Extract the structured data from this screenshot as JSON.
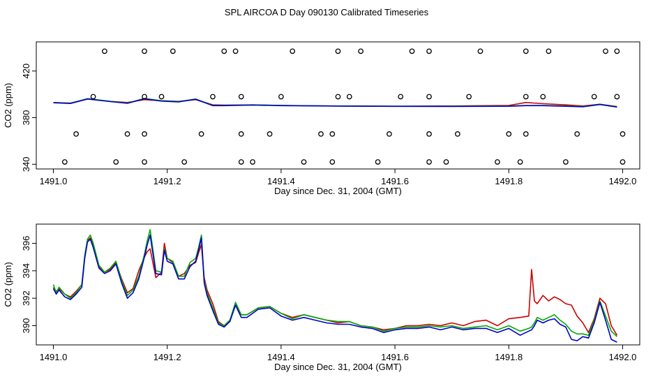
{
  "page": {
    "title": "SPL AIRCOA D  Day 090130  Calibrated Timeseries"
  },
  "chart_data": [
    {
      "type": "line",
      "xlabel": "Day since Dec. 31, 2004 (GMT)",
      "ylabel": "CO2 (ppm)",
      "xlim": [
        1490.97,
        1492.03
      ],
      "ylim": [
        336,
        445
      ],
      "xticks": [
        1491.0,
        1491.2,
        1491.4,
        1491.6,
        1491.8,
        1492.0
      ],
      "xtick_labels": [
        "1491.0",
        "1491.2",
        "1491.4",
        "1491.6",
        "1491.8",
        "1492.0"
      ],
      "yticks": [
        340,
        380,
        420
      ],
      "ytick_labels": [
        "340",
        "380",
        "420"
      ],
      "grid": false,
      "series": [
        {
          "color": "#cc0000",
          "x": [
            1491.0,
            1491.03,
            1491.06,
            1491.1,
            1491.13,
            1491.16,
            1491.19,
            1491.22,
            1491.25,
            1491.28,
            1491.3,
            1491.35,
            1491.4,
            1491.5,
            1491.6,
            1491.7,
            1491.8,
            1491.83,
            1491.86,
            1491.9,
            1491.93,
            1491.96,
            1491.99
          ],
          "y": [
            393,
            392.5,
            396,
            394,
            393,
            395.5,
            394.5,
            394,
            395.5,
            391,
            390.8,
            391,
            390.5,
            390,
            389.8,
            390,
            390.5,
            393,
            392,
            391,
            390,
            391.5,
            389.5
          ]
        },
        {
          "color": "#00aa00",
          "x": [
            1491.0,
            1491.03,
            1491.06,
            1491.1,
            1491.13,
            1491.16,
            1491.19,
            1491.22,
            1491.25,
            1491.28,
            1491.3,
            1491.35,
            1491.4,
            1491.5,
            1491.6,
            1491.7,
            1491.8,
            1491.83,
            1491.86,
            1491.9,
            1491.93,
            1491.96,
            1491.99
          ],
          "y": [
            393,
            392.3,
            396.3,
            394,
            392.5,
            396.5,
            394.5,
            393.8,
            396,
            390.5,
            390.5,
            391,
            390.5,
            390,
            389.8,
            389.8,
            390,
            390.5,
            390.5,
            390,
            389.5,
            391.5,
            389.3
          ]
        },
        {
          "color": "#0000cc",
          "x": [
            1491.0,
            1491.03,
            1491.06,
            1491.1,
            1491.13,
            1491.16,
            1491.19,
            1491.22,
            1491.25,
            1491.28,
            1491.3,
            1491.35,
            1491.4,
            1491.5,
            1491.6,
            1491.7,
            1491.8,
            1491.83,
            1491.86,
            1491.9,
            1491.93,
            1491.96,
            1491.99
          ],
          "y": [
            392.8,
            392.2,
            396,
            393.8,
            392.3,
            396.2,
            394.2,
            393.5,
            395.8,
            390.3,
            390.3,
            390.8,
            390.3,
            389.9,
            389.7,
            389.6,
            389.8,
            390.3,
            390.3,
            389.8,
            389.3,
            391.3,
            389.1
          ]
        }
      ],
      "flag_points": {
        "marker": "circle",
        "x": [
          1491.09,
          1491.16,
          1491.21,
          1491.3,
          1491.32,
          1491.42,
          1491.5,
          1491.54,
          1491.63,
          1491.66,
          1491.75,
          1491.83,
          1491.87,
          1491.97,
          1491.99,
          1491.07,
          1491.16,
          1491.19,
          1491.28,
          1491.33,
          1491.4,
          1491.5,
          1491.52,
          1491.61,
          1491.66,
          1491.73,
          1491.83,
          1491.86,
          1491.95,
          1491.99,
          1491.04,
          1491.13,
          1491.16,
          1491.26,
          1491.33,
          1491.38,
          1491.47,
          1491.49,
          1491.59,
          1491.66,
          1491.71,
          1491.8,
          1491.83,
          1491.92,
          1492.0,
          1491.02,
          1491.11,
          1491.16,
          1491.23,
          1491.33,
          1491.35,
          1491.44,
          1491.49,
          1491.57,
          1491.66,
          1491.69,
          1491.78,
          1491.82,
          1491.9,
          1492.0
        ],
        "y": [
          437,
          437,
          437,
          437,
          437,
          437,
          437,
          437,
          437,
          437,
          437,
          437,
          437,
          437,
          437,
          398,
          398,
          398,
          398,
          398,
          398,
          398,
          398,
          398,
          398,
          398,
          398,
          398,
          398,
          398,
          366,
          366,
          366,
          366,
          366,
          366,
          366,
          366,
          366,
          366,
          366,
          366,
          366,
          366,
          366,
          342,
          342,
          342,
          342,
          342,
          342,
          342,
          342,
          342,
          342,
          342,
          342,
          342,
          342,
          342
        ]
      }
    },
    {
      "type": "line",
      "xlabel": "Day since Dec. 31, 2004 (GMT)",
      "ylabel": "CO2 (ppm)",
      "xlim": [
        1490.97,
        1492.03
      ],
      "ylim": [
        388.6,
        397.4
      ],
      "xticks": [
        1491.0,
        1491.2,
        1491.4,
        1491.6,
        1491.8,
        1492.0
      ],
      "xtick_labels": [
        "1491.0",
        "1491.2",
        "1491.4",
        "1491.6",
        "1491.8",
        "1492.0"
      ],
      "yticks": [
        390,
        392,
        394,
        396
      ],
      "ytick_labels": [
        "390",
        "392",
        "394",
        "396"
      ],
      "grid": false,
      "series": [
        {
          "color": "#cc0000",
          "x": [
            1491.0,
            1491.005,
            1491.01,
            1491.02,
            1491.03,
            1491.04,
            1491.05,
            1491.055,
            1491.06,
            1491.065,
            1491.07,
            1491.08,
            1491.09,
            1491.1,
            1491.11,
            1491.12,
            1491.13,
            1491.14,
            1491.15,
            1491.16,
            1491.165,
            1491.17,
            1491.18,
            1491.19,
            1491.195,
            1491.2,
            1491.21,
            1491.22,
            1491.23,
            1491.24,
            1491.25,
            1491.255,
            1491.26,
            1491.265,
            1491.27,
            1491.28,
            1491.29,
            1491.3,
            1491.31,
            1491.32,
            1491.33,
            1491.34,
            1491.36,
            1491.38,
            1491.4,
            1491.42,
            1491.44,
            1491.46,
            1491.48,
            1491.5,
            1491.52,
            1491.54,
            1491.56,
            1491.58,
            1491.6,
            1491.62,
            1491.64,
            1491.66,
            1491.68,
            1491.7,
            1491.72,
            1491.74,
            1491.76,
            1491.78,
            1491.8,
            1491.82,
            1491.835,
            1491.84,
            1491.845,
            1491.85,
            1491.86,
            1491.87,
            1491.88,
            1491.89,
            1491.9,
            1491.91,
            1491.92,
            1491.93,
            1491.94,
            1491.95,
            1491.96,
            1491.97,
            1491.98,
            1491.99
          ],
          "y": [
            392.8,
            392.5,
            392.7,
            392.3,
            392.1,
            392.5,
            393.0,
            395.0,
            396.2,
            396.4,
            395.8,
            394.3,
            393.9,
            394.1,
            394.6,
            393.4,
            392.4,
            392.7,
            394.0,
            395.0,
            395.4,
            395.6,
            393.5,
            393.9,
            396.0,
            394.9,
            394.6,
            393.6,
            393.8,
            394.4,
            394.6,
            395.3,
            395.9,
            393.5,
            392.6,
            391.6,
            390.3,
            390.0,
            390.4,
            391.5,
            390.8,
            390.8,
            391.3,
            391.4,
            390.9,
            390.6,
            390.8,
            390.6,
            390.4,
            390.2,
            390.3,
            390.0,
            389.9,
            389.7,
            389.8,
            390.0,
            390.0,
            390.1,
            390.0,
            390.2,
            390.0,
            390.3,
            390.4,
            390.0,
            390.5,
            390.6,
            390.7,
            394.1,
            391.8,
            391.6,
            392.2,
            391.8,
            392.1,
            391.9,
            391.6,
            391.5,
            390.7,
            390.2,
            389.5,
            390.5,
            392.0,
            391.6,
            390.0,
            389.3
          ],
          "name": ""
        },
        {
          "color": "#00aa00",
          "x": [
            1491.0,
            1491.005,
            1491.01,
            1491.02,
            1491.03,
            1491.04,
            1491.05,
            1491.055,
            1491.06,
            1491.065,
            1491.07,
            1491.08,
            1491.09,
            1491.1,
            1491.11,
            1491.12,
            1491.13,
            1491.14,
            1491.15,
            1491.16,
            1491.165,
            1491.17,
            1491.18,
            1491.19,
            1491.195,
            1491.2,
            1491.21,
            1491.22,
            1491.23,
            1491.24,
            1491.25,
            1491.255,
            1491.26,
            1491.265,
            1491.27,
            1491.28,
            1491.29,
            1491.3,
            1491.31,
            1491.32,
            1491.33,
            1491.34,
            1491.36,
            1491.38,
            1491.4,
            1491.42,
            1491.44,
            1491.46,
            1491.48,
            1491.5,
            1491.52,
            1491.54,
            1491.56,
            1491.58,
            1491.6,
            1491.62,
            1491.64,
            1491.66,
            1491.68,
            1491.7,
            1491.72,
            1491.74,
            1491.76,
            1491.78,
            1491.8,
            1491.82,
            1491.835,
            1491.84,
            1491.845,
            1491.85,
            1491.86,
            1491.87,
            1491.88,
            1491.89,
            1491.9,
            1491.91,
            1491.92,
            1491.93,
            1491.94,
            1491.95,
            1491.96,
            1491.97,
            1491.98,
            1491.99
          ],
          "y": [
            393.0,
            392.4,
            392.8,
            392.3,
            392.0,
            392.4,
            393.0,
            395.1,
            396.3,
            396.6,
            396.0,
            394.4,
            393.9,
            394.2,
            394.7,
            393.3,
            392.2,
            392.6,
            393.6,
            395.2,
            396.2,
            397.0,
            394.0,
            393.9,
            395.6,
            394.9,
            394.7,
            393.6,
            393.6,
            394.6,
            394.9,
            395.7,
            396.6,
            393.3,
            392.4,
            391.3,
            390.2,
            390.0,
            390.4,
            391.7,
            390.8,
            390.8,
            391.3,
            391.4,
            390.9,
            390.5,
            390.8,
            390.6,
            390.4,
            390.3,
            390.3,
            390.0,
            389.9,
            389.6,
            389.8,
            389.9,
            389.9,
            390.0,
            389.9,
            390.0,
            389.8,
            389.9,
            390.0,
            389.7,
            390.0,
            389.6,
            389.8,
            389.9,
            390.2,
            390.6,
            390.4,
            390.6,
            390.8,
            390.4,
            390.1,
            389.6,
            389.4,
            389.4,
            389.3,
            390.4,
            391.8,
            390.7,
            389.6,
            389.2
          ]
        },
        {
          "color": "#0000cc",
          "x": [
            1491.0,
            1491.005,
            1491.01,
            1491.02,
            1491.03,
            1491.04,
            1491.05,
            1491.055,
            1491.06,
            1491.065,
            1491.07,
            1491.08,
            1491.09,
            1491.1,
            1491.11,
            1491.12,
            1491.13,
            1491.14,
            1491.15,
            1491.16,
            1491.165,
            1491.17,
            1491.18,
            1491.19,
            1491.195,
            1491.2,
            1491.21,
            1491.22,
            1491.23,
            1491.24,
            1491.25,
            1491.255,
            1491.26,
            1491.265,
            1491.27,
            1491.28,
            1491.29,
            1491.3,
            1491.31,
            1491.32,
            1491.33,
            1491.34,
            1491.36,
            1491.38,
            1491.4,
            1491.42,
            1491.44,
            1491.46,
            1491.48,
            1491.5,
            1491.52,
            1491.54,
            1491.56,
            1491.58,
            1491.6,
            1491.62,
            1491.64,
            1491.66,
            1491.68,
            1491.7,
            1491.72,
            1491.74,
            1491.76,
            1491.78,
            1491.8,
            1491.82,
            1491.835,
            1491.84,
            1491.845,
            1491.85,
            1491.86,
            1491.87,
            1491.88,
            1491.89,
            1491.9,
            1491.91,
            1491.92,
            1491.93,
            1491.94,
            1491.95,
            1491.96,
            1491.97,
            1491.98,
            1491.99
          ],
          "y": [
            392.7,
            392.3,
            392.6,
            392.1,
            391.9,
            392.3,
            392.8,
            394.9,
            396.1,
            396.3,
            395.7,
            394.2,
            393.8,
            394.0,
            394.5,
            393.1,
            392.0,
            392.4,
            393.4,
            395.0,
            395.9,
            396.6,
            393.8,
            393.7,
            395.5,
            394.7,
            394.5,
            393.4,
            393.4,
            394.3,
            394.7,
            395.5,
            396.4,
            393.1,
            392.2,
            391.1,
            390.1,
            389.9,
            390.3,
            391.5,
            390.6,
            390.6,
            391.2,
            391.3,
            390.7,
            390.4,
            390.6,
            390.4,
            390.2,
            390.1,
            390.1,
            389.9,
            389.8,
            389.5,
            389.7,
            389.8,
            389.8,
            389.9,
            389.7,
            389.9,
            389.7,
            389.8,
            389.8,
            389.5,
            389.8,
            389.3,
            389.6,
            389.7,
            390.0,
            390.4,
            390.2,
            390.4,
            390.5,
            390.1,
            389.9,
            389.0,
            388.9,
            389.2,
            389.1,
            390.2,
            391.7,
            390.4,
            389.0,
            388.8
          ]
        }
      ]
    }
  ]
}
